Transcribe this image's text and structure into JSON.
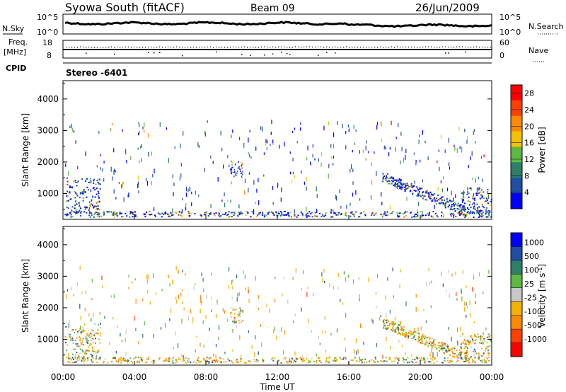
{
  "header": {
    "title": "Syowa South (fitACF)",
    "beam": "Beam 09",
    "date": "26/Jun/2009"
  },
  "status_panels": {
    "nsky_label": "N.Sky",
    "nsky_ticks": [
      "10^5",
      "10^0"
    ],
    "nsearch_label": "N.Search",
    "nsearch_ticks": [
      "10^5",
      "10^0"
    ],
    "freq_label_1": "Freq.",
    "freq_label_2": "[MHz]",
    "freq_ticks": [
      "18",
      "8"
    ],
    "nave_label": "Nave",
    "nave_ticks": [
      "60",
      "0"
    ],
    "cpid_label": "CPID",
    "cpid_value": "Stereo -6401"
  },
  "chart_data": [
    {
      "type": "heatmap",
      "name": "power",
      "ylabel": "Slant Range [km]",
      "xlabel": "",
      "ylim": [
        180,
        4580
      ],
      "yticks": [
        "1000",
        "2000",
        "3000",
        "4000"
      ],
      "yticks_values": [
        1000,
        2000,
        3000,
        4000
      ],
      "colorbar_label": "Power [dB]",
      "colorbar_ticks": [
        "4",
        "8",
        "12",
        "16",
        "20",
        "24",
        "28"
      ],
      "colorbar_tick_values": [
        4,
        8,
        12,
        16,
        20,
        24,
        28
      ],
      "colorbar_range": [
        0,
        30
      ],
      "colorbar_colors": [
        "#0000ff",
        "#1f4fa6",
        "#2d7f6a",
        "#5cba42",
        "#f5c000",
        "#ff8a00",
        "#ff4000",
        "#ff0000"
      ]
    },
    {
      "type": "heatmap",
      "name": "velocity",
      "ylabel": "Slant Range [km]",
      "xlabel": "Time UT",
      "ylim": [
        180,
        4580
      ],
      "yticks": [
        "1000",
        "2000",
        "3000",
        "4000"
      ],
      "yticks_values": [
        1000,
        2000,
        3000,
        4000
      ],
      "xticks": [
        "00:00",
        "04:00",
        "08:00",
        "12:00",
        "16:00",
        "20:00",
        "00:00"
      ],
      "xticks_hours": [
        0,
        4,
        8,
        12,
        16,
        20,
        24
      ],
      "colorbar_label": "Velocity [m s",
      "colorbar_label_sup": "-1",
      "colorbar_label_end": "]",
      "colorbar_ticks": [
        "1000",
        "500",
        "100",
        "25",
        "-25",
        "-100",
        "-500",
        "-1000"
      ],
      "colorbar_colors": [
        "#0000ff",
        "#1f4fa6",
        "#2d7f6a",
        "#5cba42",
        "#c8c8c8",
        "#f5b000",
        "#ff8a00",
        "#ff4000",
        "#ff0000"
      ]
    }
  ]
}
